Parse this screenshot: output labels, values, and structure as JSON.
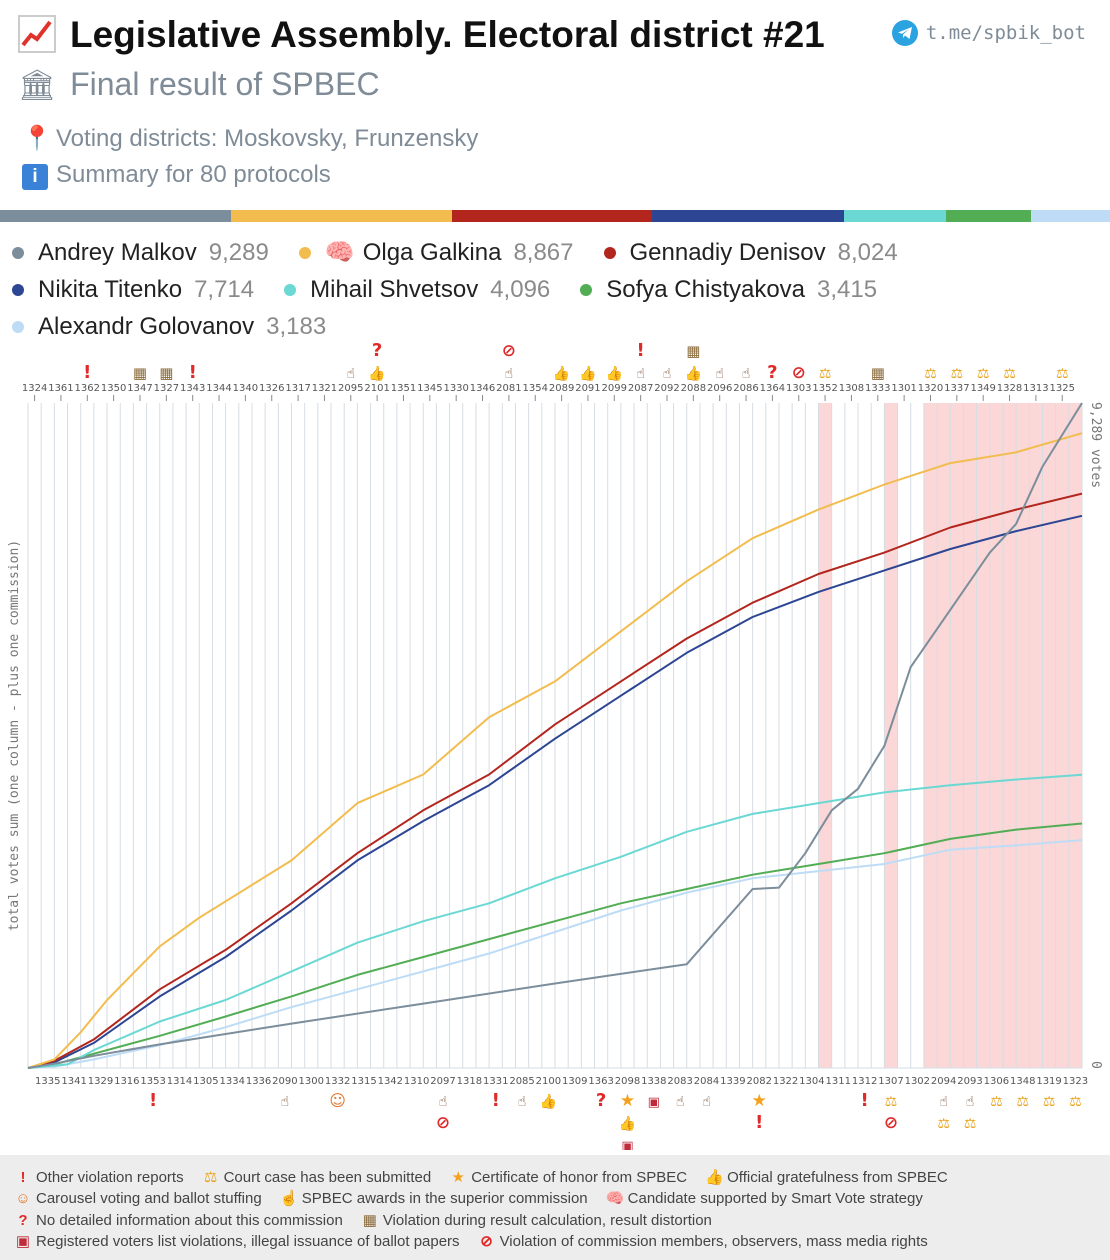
{
  "header": {
    "title": "Legislative Assembly. Electoral district #21",
    "subtitle": "Final result of SPBEC",
    "districts": "Voting districts: Moskovsky, Frunzensky",
    "summary": "Summary for 80 protocols",
    "telegram": "t.me/spbik_bot",
    "icons": [
      "chart-icon",
      "bank-icon",
      "pin-icon",
      "info-icon",
      "telegram-icon"
    ]
  },
  "legend": [
    {
      "name": "Andrey Malkov",
      "value": "9,289",
      "color": "#7c8d9b"
    },
    {
      "name": "Olga Galkina",
      "value": "8,867",
      "color": "#f2bd4e",
      "icon": "brain-icon"
    },
    {
      "name": "Gennadiy Denisov",
      "value": "8,024",
      "color": "#b3261e"
    },
    {
      "name": "Nikita Titenko",
      "value": "7,714",
      "color": "#2d4693"
    },
    {
      "name": "Mihail Shvetsov",
      "value": "4,096",
      "color": "#6bd8d3"
    },
    {
      "name": "Sofya Chistyakova",
      "value": "3,415",
      "color": "#52ad55"
    },
    {
      "name": "Alexandr Golovanov",
      "value": "3,183",
      "color": "#bedcf5"
    }
  ],
  "footer": {
    "rows": [
      [
        {
          "icon": "exclamation-icon",
          "text": "Other violation reports"
        },
        {
          "icon": "scales-icon",
          "text": "Court case has been submitted"
        },
        {
          "icon": "star-icon",
          "text": "Certificate of honor from SPBEC"
        },
        {
          "icon": "thumbs-up-icon",
          "text": "Official gratefulness from SPBEC"
        }
      ],
      [
        {
          "icon": "clown-icon",
          "text": "Carousel voting and ballot stuffing"
        },
        {
          "icon": "pointing-up-icon",
          "text": "SPBEC awards in the superior commission"
        },
        {
          "icon": "brain-icon",
          "text": "Candidate supported by Smart Vote strategy"
        }
      ],
      [
        {
          "icon": "question-icon",
          "text": "No detailed information about this commission"
        },
        {
          "icon": "abacus-icon",
          "text": "Violation during result calculation, result distortion"
        }
      ],
      [
        {
          "icon": "ballot-box-icon",
          "text": "Registered voters list violations, illegal issuance of ballot papers"
        },
        {
          "icon": "prohibited-icon",
          "text": "Violation of commission members, observers, mass media rights"
        }
      ]
    ]
  },
  "chart_data": {
    "type": "line",
    "ylabel": "total votes sum (one column - plus one commission)",
    "right_top_label": "9,289 votes",
    "right_bottom_label": "0",
    "ylim": [
      0,
      9289
    ],
    "top_labels": [
      "1324",
      "1361",
      "1362",
      "1350",
      "1347",
      "1327",
      "1343",
      "1344",
      "1340",
      "1326",
      "1317",
      "1321",
      "2095",
      "2101",
      "1351",
      "1345",
      "1330",
      "1346",
      "2081",
      "1354",
      "2089",
      "2091",
      "2099",
      "2087",
      "2092",
      "2088",
      "2096",
      "2086",
      "1364",
      "1303",
      "1352",
      "1308",
      "1333",
      "1301",
      "1320",
      "1337",
      "1349",
      "1328",
      "1313",
      "1325"
    ],
    "bottom_labels": [
      "1335",
      "1341",
      "1329",
      "1316",
      "1353",
      "1314",
      "1305",
      "1334",
      "1336",
      "2090",
      "1300",
      "1332",
      "1315",
      "1342",
      "1310",
      "2097",
      "1318",
      "1331",
      "2085",
      "2100",
      "1309",
      "1363",
      "2098",
      "1338",
      "2083",
      "2084",
      "1339",
      "2082",
      "1322",
      "1304",
      "1311",
      "1312",
      "1307",
      "1302",
      "2094",
      "2093",
      "1306",
      "1348",
      "1319",
      "1323"
    ],
    "highlighted_columns": [
      60,
      65,
      68,
      69,
      70,
      71,
      72,
      73,
      74,
      75,
      76,
      77,
      78,
      79
    ],
    "top_markers": [
      {
        "col": 4,
        "icons": [
          "exclamation-icon"
        ]
      },
      {
        "col": 8,
        "icons": [
          "abacus-icon"
        ]
      },
      {
        "col": 10,
        "icons": [
          "abacus-icon"
        ]
      },
      {
        "col": 12,
        "icons": [
          "exclamation-icon"
        ]
      },
      {
        "col": 24,
        "icons": [
          "pointing-up-icon"
        ]
      },
      {
        "col": 26,
        "icons": [
          "thumbs-up-icon",
          "question-icon"
        ]
      },
      {
        "col": 36,
        "icons": [
          "pointing-up-icon",
          "prohibited-icon"
        ]
      },
      {
        "col": 40,
        "icons": [
          "thumbs-up-icon"
        ]
      },
      {
        "col": 42,
        "icons": [
          "thumbs-up-icon"
        ]
      },
      {
        "col": 44,
        "icons": [
          "thumbs-up-icon"
        ]
      },
      {
        "col": 46,
        "icons": [
          "pointing-up-icon",
          "exclamation-icon"
        ]
      },
      {
        "col": 48,
        "icons": [
          "pointing-up-icon"
        ]
      },
      {
        "col": 50,
        "icons": [
          "thumbs-up-icon",
          "abacus-icon"
        ]
      },
      {
        "col": 52,
        "icons": [
          "pointing-up-icon"
        ]
      },
      {
        "col": 54,
        "icons": [
          "pointing-up-icon"
        ]
      },
      {
        "col": 56,
        "icons": [
          "question-icon"
        ]
      },
      {
        "col": 58,
        "icons": [
          "prohibited-icon"
        ]
      },
      {
        "col": 60,
        "icons": [
          "scales-icon"
        ]
      },
      {
        "col": 64,
        "icons": [
          "abacus-icon"
        ]
      },
      {
        "col": 68,
        "icons": [
          "scales-icon"
        ]
      },
      {
        "col": 70,
        "icons": [
          "scales-icon"
        ]
      },
      {
        "col": 72,
        "icons": [
          "scales-icon"
        ]
      },
      {
        "col": 74,
        "icons": [
          "scales-icon"
        ]
      },
      {
        "col": 78,
        "icons": [
          "scales-icon"
        ]
      }
    ],
    "bottom_markers": [
      {
        "col": 9,
        "icons": [
          "exclamation-icon"
        ]
      },
      {
        "col": 19,
        "icons": [
          "pointing-up-icon"
        ]
      },
      {
        "col": 23,
        "icons": [
          "clown-icon"
        ]
      },
      {
        "col": 31,
        "icons": [
          "pointing-up-icon",
          "prohibited-icon"
        ]
      },
      {
        "col": 35,
        "icons": [
          "exclamation-icon"
        ]
      },
      {
        "col": 37,
        "icons": [
          "pointing-up-icon"
        ]
      },
      {
        "col": 39,
        "icons": [
          "thumbs-up-icon"
        ]
      },
      {
        "col": 43,
        "icons": [
          "question-icon"
        ]
      },
      {
        "col": 45,
        "icons": [
          "star-icon",
          "thumbs-up-icon",
          "ballot-box-icon"
        ]
      },
      {
        "col": 47,
        "icons": [
          "ballot-box-icon"
        ]
      },
      {
        "col": 49,
        "icons": [
          "pointing-up-icon"
        ]
      },
      {
        "col": 51,
        "icons": [
          "pointing-up-icon"
        ]
      },
      {
        "col": 55,
        "icons": [
          "star-icon",
          "exclamation-icon"
        ]
      },
      {
        "col": 63,
        "icons": [
          "exclamation-icon"
        ]
      },
      {
        "col": 65,
        "icons": [
          "scales-icon",
          "prohibited-icon"
        ]
      },
      {
        "col": 69,
        "icons": [
          "pointing-up-icon",
          "scales-icon"
        ]
      },
      {
        "col": 71,
        "icons": [
          "pointing-up-icon",
          "scales-icon"
        ]
      },
      {
        "col": 73,
        "icons": [
          "scales-icon"
        ]
      },
      {
        "col": 75,
        "icons": [
          "scales-icon"
        ]
      },
      {
        "col": 77,
        "icons": [
          "scales-icon"
        ]
      },
      {
        "col": 79,
        "icons": [
          "scales-icon"
        ]
      }
    ],
    "series": [
      {
        "name": "Andrey Malkov",
        "color": "#7c8d9b",
        "points": [
          [
            0,
            0
          ],
          [
            2,
            60
          ],
          [
            5,
            170
          ],
          [
            10,
            330
          ],
          [
            20,
            620
          ],
          [
            30,
            900
          ],
          [
            40,
            1180
          ],
          [
            50,
            1450
          ],
          [
            55,
            2500
          ],
          [
            57,
            2520
          ],
          [
            59,
            3000
          ],
          [
            61,
            3600
          ],
          [
            63,
            3900
          ],
          [
            65,
            4500
          ],
          [
            67,
            5600
          ],
          [
            70,
            6400
          ],
          [
            73,
            7200
          ],
          [
            75,
            7600
          ],
          [
            77,
            8400
          ],
          [
            80,
            9289
          ]
        ]
      },
      {
        "name": "Olga Galkina",
        "color": "#f2bd4e",
        "points": [
          [
            0,
            0
          ],
          [
            2,
            120
          ],
          [
            4,
            500
          ],
          [
            6,
            950
          ],
          [
            10,
            1700
          ],
          [
            13,
            2100
          ],
          [
            20,
            2900
          ],
          [
            25,
            3700
          ],
          [
            30,
            4100
          ],
          [
            35,
            4900
          ],
          [
            40,
            5400
          ],
          [
            45,
            6100
          ],
          [
            50,
            6800
          ],
          [
            55,
            7400
          ],
          [
            60,
            7800
          ],
          [
            65,
            8150
          ],
          [
            70,
            8450
          ],
          [
            75,
            8600
          ],
          [
            80,
            8867
          ]
        ]
      },
      {
        "name": "Gennadiy Denisov",
        "color": "#b3261e",
        "points": [
          [
            0,
            0
          ],
          [
            2,
            100
          ],
          [
            5,
            400
          ],
          [
            10,
            1100
          ],
          [
            15,
            1650
          ],
          [
            20,
            2300
          ],
          [
            25,
            3000
          ],
          [
            30,
            3600
          ],
          [
            35,
            4100
          ],
          [
            40,
            4800
          ],
          [
            45,
            5400
          ],
          [
            50,
            6000
          ],
          [
            55,
            6500
          ],
          [
            60,
            6900
          ],
          [
            65,
            7200
          ],
          [
            70,
            7550
          ],
          [
            75,
            7800
          ],
          [
            80,
            8024
          ]
        ]
      },
      {
        "name": "Nikita Titenko",
        "color": "#2d4693",
        "points": [
          [
            0,
            0
          ],
          [
            2,
            80
          ],
          [
            5,
            350
          ],
          [
            10,
            1000
          ],
          [
            15,
            1550
          ],
          [
            20,
            2200
          ],
          [
            25,
            2900
          ],
          [
            30,
            3450
          ],
          [
            35,
            3950
          ],
          [
            40,
            4600
          ],
          [
            45,
            5200
          ],
          [
            50,
            5800
          ],
          [
            55,
            6300
          ],
          [
            60,
            6650
          ],
          [
            65,
            6950
          ],
          [
            70,
            7250
          ],
          [
            75,
            7500
          ],
          [
            80,
            7714
          ]
        ]
      },
      {
        "name": "Mihail Shvetsov",
        "color": "#6bd8d3",
        "points": [
          [
            0,
            0
          ],
          [
            3,
            50
          ],
          [
            5,
            250
          ],
          [
            10,
            650
          ],
          [
            15,
            950
          ],
          [
            20,
            1350
          ],
          [
            25,
            1750
          ],
          [
            30,
            2050
          ],
          [
            35,
            2300
          ],
          [
            40,
            2650
          ],
          [
            45,
            2950
          ],
          [
            50,
            3300
          ],
          [
            55,
            3550
          ],
          [
            60,
            3700
          ],
          [
            65,
            3850
          ],
          [
            70,
            3950
          ],
          [
            75,
            4030
          ],
          [
            80,
            4096
          ]
        ]
      },
      {
        "name": "Sofya Chistyakova",
        "color": "#52ad55",
        "points": [
          [
            0,
            0
          ],
          [
            2,
            50
          ],
          [
            5,
            200
          ],
          [
            10,
            450
          ],
          [
            15,
            720
          ],
          [
            20,
            1000
          ],
          [
            25,
            1300
          ],
          [
            30,
            1550
          ],
          [
            35,
            1800
          ],
          [
            40,
            2050
          ],
          [
            45,
            2300
          ],
          [
            50,
            2500
          ],
          [
            55,
            2700
          ],
          [
            60,
            2850
          ],
          [
            65,
            3000
          ],
          [
            70,
            3200
          ],
          [
            75,
            3330
          ],
          [
            80,
            3415
          ]
        ]
      },
      {
        "name": "Alexandr Golovanov",
        "color": "#bedcf5",
        "points": [
          [
            0,
            0
          ],
          [
            2,
            20
          ],
          [
            5,
            120
          ],
          [
            10,
            320
          ],
          [
            15,
            570
          ],
          [
            20,
            850
          ],
          [
            25,
            1100
          ],
          [
            30,
            1350
          ],
          [
            35,
            1600
          ],
          [
            40,
            1900
          ],
          [
            45,
            2200
          ],
          [
            50,
            2450
          ],
          [
            55,
            2650
          ],
          [
            60,
            2750
          ],
          [
            65,
            2850
          ],
          [
            70,
            3050
          ],
          [
            75,
            3110
          ],
          [
            80,
            3183
          ]
        ]
      }
    ]
  }
}
